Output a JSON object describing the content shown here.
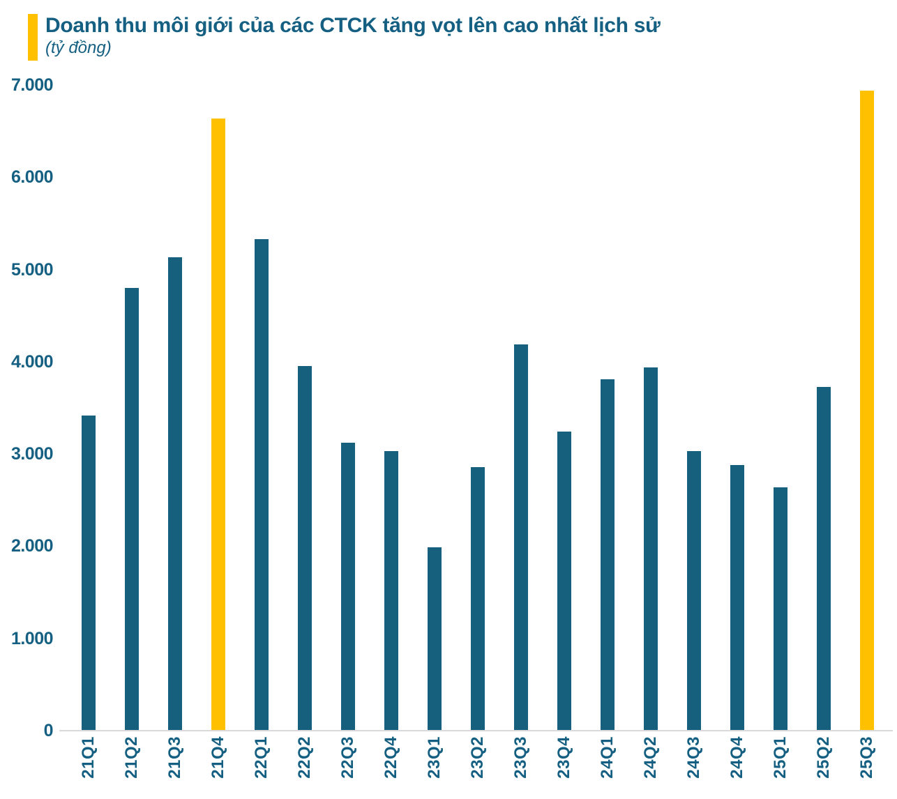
{
  "header": {
    "title": "Doanh thu môi giới của các CTCK tăng vọt lên cao nhất lịch sử",
    "subtitle": "(tỷ đồng)"
  },
  "colors": {
    "bar": "#16607D",
    "highlight": "#FFC000",
    "text": "#156082",
    "axis_line": "#D9D9D9",
    "accent_bar": "#FFC000"
  },
  "chart_data": {
    "type": "bar",
    "title": "Doanh thu môi giới của các CTCK tăng vọt lên cao nhất lịch sử",
    "subtitle": "(tỷ đồng)",
    "ylabel": "tỷ đồng",
    "xlabel": "",
    "categories": [
      "21Q1",
      "21Q2",
      "21Q3",
      "21Q4",
      "22Q1",
      "22Q2",
      "22Q3",
      "22Q4",
      "23Q1",
      "23Q2",
      "23Q3",
      "23Q4",
      "24Q1",
      "24Q2",
      "24Q3",
      "24Q4",
      "25Q1",
      "25Q2",
      "25Q3"
    ],
    "values": [
      3420,
      4800,
      5130,
      6640,
      5330,
      3950,
      3120,
      3030,
      1990,
      2860,
      4190,
      3240,
      3810,
      3940,
      3030,
      2880,
      2640,
      3730,
      6940
    ],
    "highlighted_categories": [
      "21Q4",
      "25Q3"
    ],
    "y_ticks": [
      0,
      1000,
      2000,
      3000,
      4000,
      5000,
      6000,
      7000
    ],
    "y_tick_labels": [
      "0",
      "1.000",
      "2.000",
      "3.000",
      "4.000",
      "5.000",
      "6.000",
      "7.000"
    ],
    "ylim": [
      0,
      7000
    ],
    "grid": false,
    "legend": false,
    "x_label_rotation": -90
  }
}
